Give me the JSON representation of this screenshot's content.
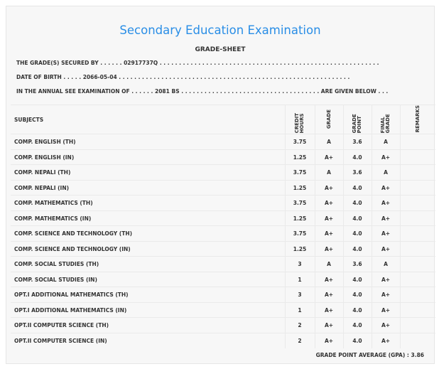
{
  "title": "Secondary Education Examination",
  "subtitle": "GRADE-SHEET",
  "info": {
    "secured_by_label": "THE GRADE(S) SECURED BY . . . . . .",
    "symbol_no": "02917737Q",
    "secured_by_trail": ". . . . . . . . . . . . . . . . . . . . . . . . . . . . . . . . . . . . . . . . . . . . . . . . . . . . . . . . .",
    "dob_label": "DATE OF BIRTH . . . . .",
    "dob": "2066-05-04",
    "dob_trail": ". . . . . . . . . . . . . . . . . . . . . . . . . . . . . . . . . . . . . . . . . . . . . . . . . . . . . . . . . . . .",
    "exam_label": "IN THE ANNUAL SEE EXAMINATION OF . . . . . .",
    "exam_year": "2081 BS",
    "exam_trail": ". . . . . . . . . . . . . . . . . . . . . . . . . . . . . . . . . . . . ARE GIVEN BELOW . . ."
  },
  "headers": {
    "subjects": "SUBJECTS",
    "credit": "CREDIT HOURS",
    "grade": "GRADE",
    "grade_point": "GRADE POINT",
    "final_grade": "FINAL GRADE",
    "remarks": "REMARKS"
  },
  "rows": [
    {
      "subject": "COMP. ENGLISH (TH)",
      "credit": "3.75",
      "grade": "A",
      "gp": "3.6",
      "final": "A"
    },
    {
      "subject": "COMP. ENGLISH (IN)",
      "credit": "1.25",
      "grade": "A+",
      "gp": "4.0",
      "final": "A+"
    },
    {
      "subject": "COMP. NEPALI (TH)",
      "credit": "3.75",
      "grade": "A",
      "gp": "3.6",
      "final": "A"
    },
    {
      "subject": "COMP. NEPALI (IN)",
      "credit": "1.25",
      "grade": "A+",
      "gp": "4.0",
      "final": "A+"
    },
    {
      "subject": "COMP. MATHEMATICS (TH)",
      "credit": "3.75",
      "grade": "A+",
      "gp": "4.0",
      "final": "A+"
    },
    {
      "subject": "COMP. MATHEMATICS (IN)",
      "credit": "1.25",
      "grade": "A+",
      "gp": "4.0",
      "final": "A+"
    },
    {
      "subject": "COMP. SCIENCE AND TECHNOLOGY (TH)",
      "credit": "3.75",
      "grade": "A+",
      "gp": "4.0",
      "final": "A+"
    },
    {
      "subject": "COMP. SCIENCE AND TECHNOLOGY (IN)",
      "credit": "1.25",
      "grade": "A+",
      "gp": "4.0",
      "final": "A+"
    },
    {
      "subject": "COMP. SOCIAL STUDIES (TH)",
      "credit": "3",
      "grade": "A",
      "gp": "3.6",
      "final": "A"
    },
    {
      "subject": "COMP. SOCIAL STUDIES (IN)",
      "credit": "1",
      "grade": "A+",
      "gp": "4.0",
      "final": "A+"
    },
    {
      "subject": "OPT.I ADDITIONAL MATHEMATICS (TH)",
      "credit": "3",
      "grade": "A+",
      "gp": "4.0",
      "final": "A+"
    },
    {
      "subject": "OPT.I ADDITIONAL MATHEMATICS (IN)",
      "credit": "1",
      "grade": "A+",
      "gp": "4.0",
      "final": "A+"
    },
    {
      "subject": "OPT.II COMPUTER SCIENCE (TH)",
      "credit": "2",
      "grade": "A+",
      "gp": "4.0",
      "final": "A+"
    },
    {
      "subject": "OPT.II COMPUTER SCIENCE (IN)",
      "credit": "2",
      "grade": "A+",
      "gp": "4.0",
      "final": "A+"
    }
  ],
  "gpa": "GRADE POINT AVERAGE (GPA) : 3.86"
}
